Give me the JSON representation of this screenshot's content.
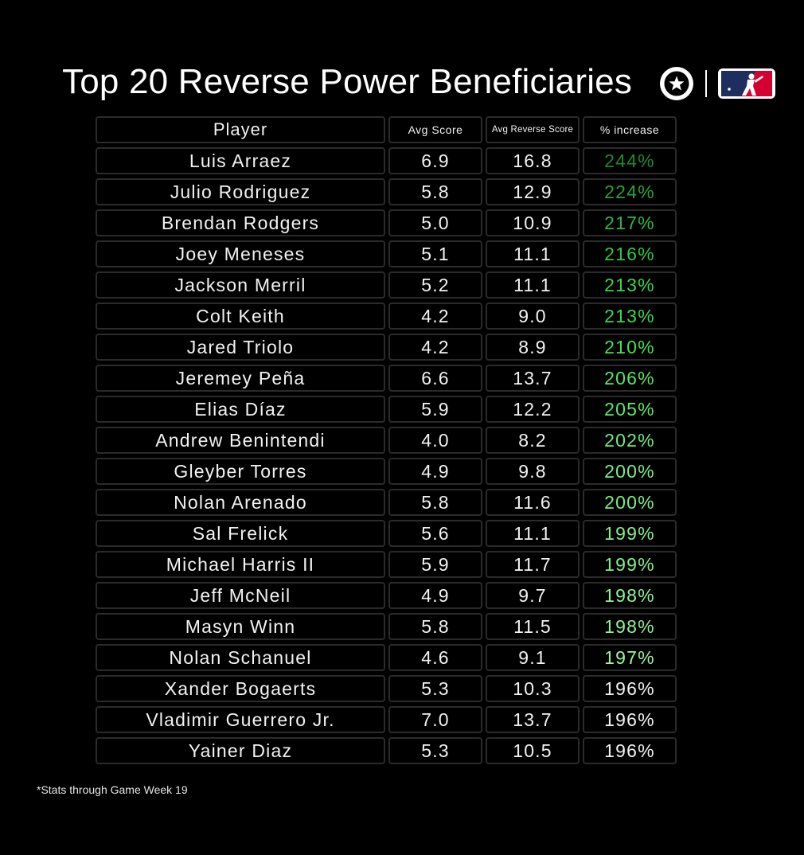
{
  "title": "Top 20 Reverse Power Beneficiaries",
  "footnote": "*Stats through Game Week 19",
  "colors": {
    "background": "#000000",
    "text": "#ffffff",
    "cell_border": "#2b2b2b",
    "mlb_blue": "#1d2e5f",
    "mlb_red": "#d50032"
  },
  "icons": [
    "star-circle-logo",
    "mlb-logo"
  ],
  "chart_data": {
    "type": "table",
    "title": "Top 20 Reverse Power Beneficiaries",
    "columns": [
      "Player",
      "Avg Score",
      "Avg Reverse Score",
      "% increase"
    ],
    "rows": [
      {
        "player": "Luis Arraez",
        "avg": "6.9",
        "rev": "16.8",
        "pct": "244%",
        "color": "#1f8a2c"
      },
      {
        "player": "Julio Rodriguez",
        "avg": "5.8",
        "rev": "12.9",
        "pct": "224%",
        "color": "#29a435"
      },
      {
        "player": "Brendan Rodgers",
        "avg": "5.0",
        "rev": "10.9",
        "pct": "217%",
        "color": "#2fba3c"
      },
      {
        "player": "Joey Meneses",
        "avg": "5.1",
        "rev": "11.1",
        "pct": "216%",
        "color": "#33c840"
      },
      {
        "player": "Jackson Merril",
        "avg": "5.2",
        "rev": "11.1",
        "pct": "213%",
        "color": "#3bd848"
      },
      {
        "player": "Colt Keith",
        "avg": "4.2",
        "rev": "9.0",
        "pct": "213%",
        "color": "#3bd848"
      },
      {
        "player": "Jared Triolo",
        "avg": "4.2",
        "rev": "8.9",
        "pct": "210%",
        "color": "#48e052"
      },
      {
        "player": "Jeremey Peña",
        "avg": "6.6",
        "rev": "13.7",
        "pct": "206%",
        "color": "#5ae663"
      },
      {
        "player": "Elias Díaz",
        "avg": "5.9",
        "rev": "12.2",
        "pct": "205%",
        "color": "#60e868"
      },
      {
        "player": "Andrew Benintendi",
        "avg": "4.0",
        "rev": "8.2",
        "pct": "202%",
        "color": "#72ec78"
      },
      {
        "player": "Gleyber Torres",
        "avg": "4.9",
        "rev": "9.8",
        "pct": "200%",
        "color": "#7cee82"
      },
      {
        "player": "Nolan Arenado",
        "avg": "5.8",
        "rev": "11.6",
        "pct": "200%",
        "color": "#7cee82"
      },
      {
        "player": "Sal Frelick",
        "avg": "5.6",
        "rev": "11.1",
        "pct": "199%",
        "color": "#86f08b"
      },
      {
        "player": "Michael Harris II",
        "avg": "5.9",
        "rev": "11.7",
        "pct": "199%",
        "color": "#86f08b"
      },
      {
        "player": "Jeff McNeil",
        "avg": "4.9",
        "rev": "9.7",
        "pct": "198%",
        "color": "#92f296"
      },
      {
        "player": "Masyn Winn",
        "avg": "5.8",
        "rev": "11.5",
        "pct": "198%",
        "color": "#92f296"
      },
      {
        "player": "Nolan Schanuel",
        "avg": "4.6",
        "rev": "9.1",
        "pct": "197%",
        "color": "#9ef4a1"
      },
      {
        "player": "Xander Bogaerts",
        "avg": "5.3",
        "rev": "10.3",
        "pct": "196%",
        "color": "#f2f2f2"
      },
      {
        "player": "Vladimir Guerrero Jr.",
        "avg": "7.0",
        "rev": "13.7",
        "pct": "196%",
        "color": "#f2f2f2"
      },
      {
        "player": "Yainer Diaz",
        "avg": "5.3",
        "rev": "10.5",
        "pct": "196%",
        "color": "#f2f2f2"
      }
    ]
  }
}
